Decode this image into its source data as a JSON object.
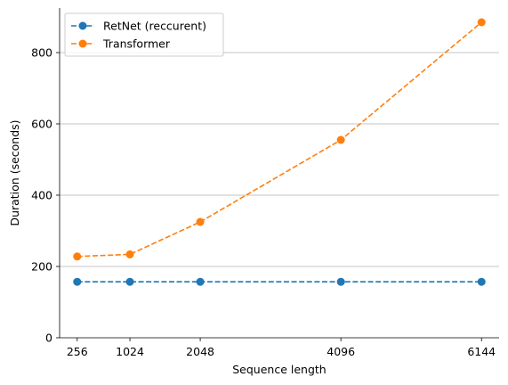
{
  "chart_data": {
    "type": "line",
    "x": [
      256,
      1024,
      2048,
      4096,
      6144
    ],
    "xlim": [
      0,
      6400
    ],
    "ylim": [
      0,
      925
    ],
    "xticks": [
      256,
      1024,
      2048,
      4096,
      6144
    ],
    "yticks": [
      0,
      200,
      400,
      600,
      800
    ],
    "xlabel": "Sequence length",
    "ylabel": "Duration (seconds)",
    "grid": "horizontal",
    "legend_position": "top-left",
    "series": [
      {
        "name": "RetNet (reccurent)",
        "color": "#1f77b4",
        "values": [
          157,
          157,
          157,
          157,
          157
        ]
      },
      {
        "name": "Transformer",
        "color": "#ff7f0e",
        "values": [
          228,
          234,
          325,
          555,
          885
        ]
      }
    ]
  }
}
